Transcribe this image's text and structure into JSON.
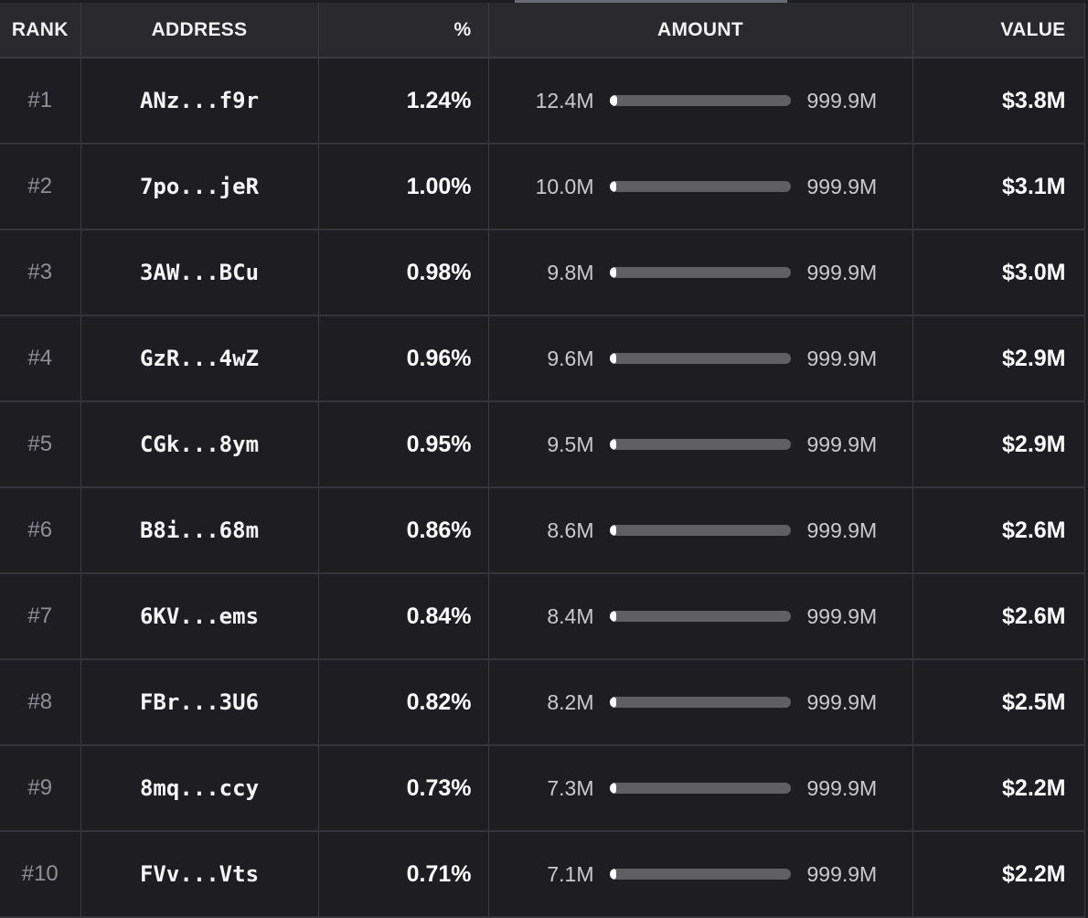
{
  "table": {
    "headers": {
      "rank": "RANK",
      "address": "ADDRESS",
      "percent": "%",
      "amount": "AMOUNT",
      "value": "VALUE"
    },
    "rows": [
      {
        "rank": "#1",
        "address": "ANz...f9r",
        "percent": "1.24%",
        "amount": "12.4M",
        "total": "999.9M",
        "value": "$3.8M",
        "fill": 0.0124
      },
      {
        "rank": "#2",
        "address": "7po...jeR",
        "percent": "1.00%",
        "amount": "10.0M",
        "total": "999.9M",
        "value": "$3.1M",
        "fill": 0.01
      },
      {
        "rank": "#3",
        "address": "3AW...BCu",
        "percent": "0.98%",
        "amount": "9.8M",
        "total": "999.9M",
        "value": "$3.0M",
        "fill": 0.0098
      },
      {
        "rank": "#4",
        "address": "GzR...4wZ",
        "percent": "0.96%",
        "amount": "9.6M",
        "total": "999.9M",
        "value": "$2.9M",
        "fill": 0.0096
      },
      {
        "rank": "#5",
        "address": "CGk...8ym",
        "percent": "0.95%",
        "amount": "9.5M",
        "total": "999.9M",
        "value": "$2.9M",
        "fill": 0.0095
      },
      {
        "rank": "#6",
        "address": "B8i...68m",
        "percent": "0.86%",
        "amount": "8.6M",
        "total": "999.9M",
        "value": "$2.6M",
        "fill": 0.0086
      },
      {
        "rank": "#7",
        "address": "6KV...ems",
        "percent": "0.84%",
        "amount": "8.4M",
        "total": "999.9M",
        "value": "$2.6M",
        "fill": 0.0084
      },
      {
        "rank": "#8",
        "address": "FBr...3U6",
        "percent": "0.82%",
        "amount": "8.2M",
        "total": "999.9M",
        "value": "$2.5M",
        "fill": 0.0082
      },
      {
        "rank": "#9",
        "address": "8mq...ccy",
        "percent": "0.73%",
        "amount": "7.3M",
        "total": "999.9M",
        "value": "$2.2M",
        "fill": 0.0073
      },
      {
        "rank": "#10",
        "address": "FVv...Vts",
        "percent": "0.71%",
        "amount": "7.1M",
        "total": "999.9M",
        "value": "$2.2M",
        "fill": 0.0071
      }
    ]
  },
  "colors": {
    "background": "#1e1e22",
    "header_background": "#29292e",
    "bar_track": "#5f5f64",
    "bar_fill": "#ffffff",
    "rank_text": "#8f8f96"
  }
}
